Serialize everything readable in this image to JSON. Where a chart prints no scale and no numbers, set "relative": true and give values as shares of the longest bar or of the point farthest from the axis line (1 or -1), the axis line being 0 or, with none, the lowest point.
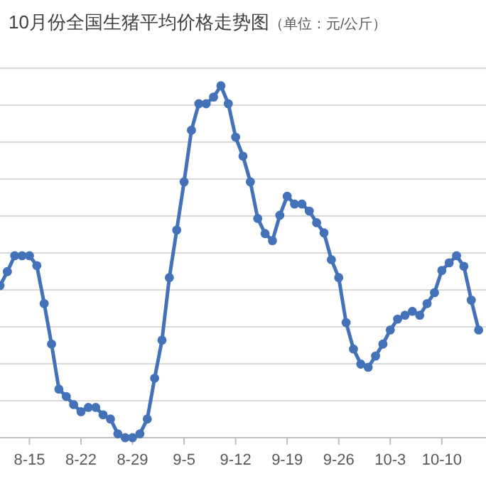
{
  "chart_data": {
    "type": "line",
    "title": "10月份全国生猪平均价格走势图",
    "subtitle": "（单位：元/公斤）",
    "relative": true,
    "x": [
      "--08-11",
      "--08-12",
      "--08-13",
      "--08-14",
      "--08-15",
      "--08-16",
      "--08-17",
      "--08-18",
      "--08-19",
      "--08-20",
      "--08-21",
      "--08-22",
      "--08-23",
      "--08-24",
      "--08-25",
      "--08-26",
      "--08-27",
      "--08-28",
      "--08-29",
      "--08-30",
      "--08-31",
      "--09-01",
      "--09-02",
      "--09-03",
      "--09-04",
      "--09-05",
      "--09-06",
      "--09-07",
      "--09-08",
      "--09-09",
      "--09-10",
      "--09-11",
      "--09-12",
      "--09-13",
      "--09-14",
      "--09-15",
      "--09-16",
      "--09-17",
      "--09-18",
      "--09-19",
      "--09-20",
      "--09-21",
      "--09-22",
      "--09-23",
      "--09-24",
      "--09-25",
      "--09-26",
      "--09-27",
      "--09-28",
      "--09-29",
      "--09-30",
      "--10-01",
      "--10-02",
      "--10-03",
      "--10-04",
      "--10-05",
      "--10-06",
      "--10-07",
      "--10-08",
      "--10-09",
      "--10-10",
      "--10-11",
      "--10-12",
      "--10-13",
      "--10-14",
      "--10-15"
    ],
    "series": [
      {
        "color": "#4372b8",
        "values": [
          0.432,
          0.472,
          0.517,
          0.517,
          0.517,
          0.489,
          0.381,
          0.266,
          0.138,
          0.117,
          0.094,
          0.074,
          0.086,
          0.086,
          0.065,
          0.053,
          0.011,
          0,
          0,
          0.011,
          0.053,
          0.169,
          0.277,
          0.455,
          0.59,
          0.727,
          0.874,
          0.949,
          0.949,
          0.968,
          1,
          0.949,
          0.854,
          0.8,
          0.727,
          0.623,
          0.58,
          0.56,
          0.632,
          0.686,
          0.664,
          0.664,
          0.644,
          0.611,
          0.582,
          0.506,
          0.455,
          0.327,
          0.252,
          0.209,
          0.2,
          0.232,
          0.266,
          0.306,
          0.337,
          0.348,
          0.359,
          0.348,
          0.381,
          0.412,
          0.475,
          0.497,
          0.517,
          0.487,
          0.391,
          0.306
        ]
      }
    ],
    "xlim": [
      "--08-11",
      "--10-16"
    ],
    "xticks": [
      {
        "value": "--08-15",
        "label": "8-15"
      },
      {
        "value": "--08-22",
        "label": "8-22"
      },
      {
        "value": "--08-29",
        "label": "8-29"
      },
      {
        "value": "--09-05",
        "label": "9-5"
      },
      {
        "value": "--09-12",
        "label": "9-12"
      },
      {
        "value": "--09-19",
        "label": "9-19"
      },
      {
        "value": "--09-26",
        "label": "9-26"
      },
      {
        "value": "--10-03",
        "label": "10-3"
      },
      {
        "value": "--10-10",
        "label": "10-10"
      }
    ],
    "grid": "y",
    "marker": "circle",
    "line_style": "solid"
  }
}
